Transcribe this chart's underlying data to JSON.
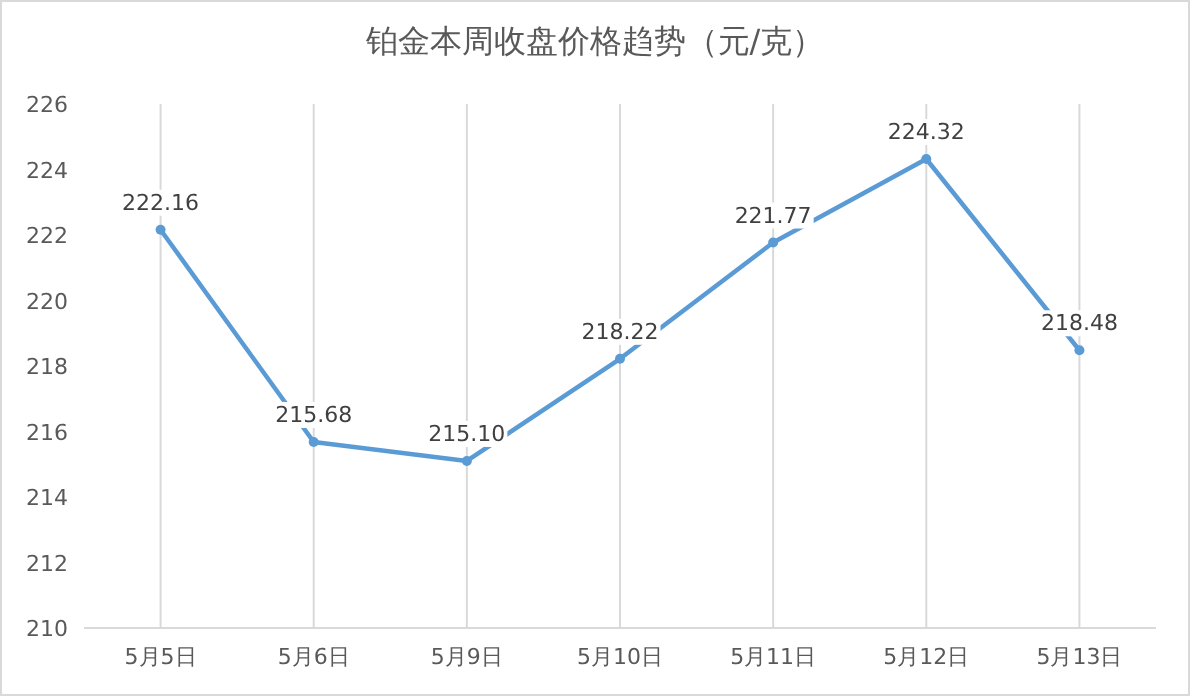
{
  "chart_data": {
    "type": "line",
    "title": "铂金本周收盘价格趋势（元/克）",
    "categories": [
      "5月5日",
      "5月6日",
      "5月9日",
      "5月10日",
      "5月11日",
      "5月12日",
      "5月13日"
    ],
    "values": [
      222.16,
      215.68,
      215.1,
      218.22,
      221.77,
      224.32,
      218.48
    ],
    "value_labels": [
      "222.16",
      "215.68",
      "215.10",
      "218.22",
      "221.77",
      "224.32",
      "218.48"
    ],
    "color": "#5b9bd5",
    "ylim": [
      210,
      226
    ],
    "yticks": [
      210,
      212,
      214,
      216,
      218,
      220,
      222,
      224,
      226
    ],
    "grid": "x",
    "marker": "circle",
    "line_style": "solid"
  }
}
